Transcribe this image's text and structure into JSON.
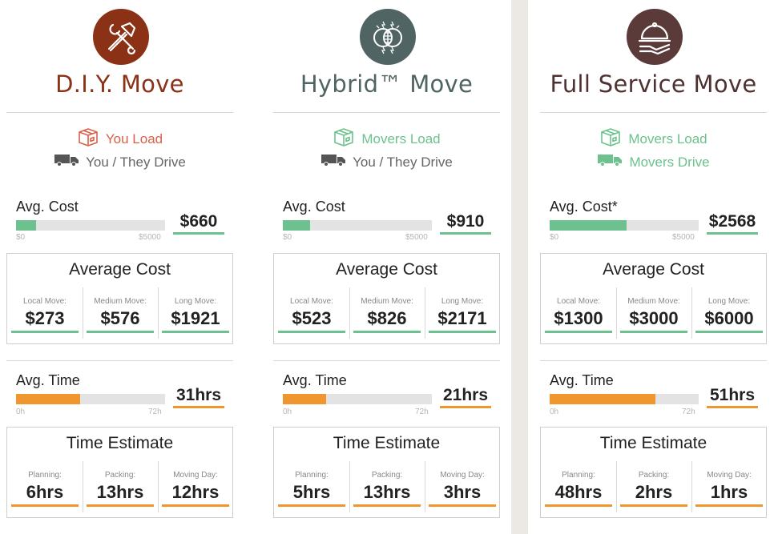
{
  "columns": [
    {
      "title": "D.I.Y. Move",
      "title_color": "#8b3116",
      "icon_bg": "#8b3116",
      "icon": "hammer-wrench-icon",
      "load": {
        "label": "You Load",
        "color": "#d9604a"
      },
      "drive": {
        "label": "You / They Drive",
        "color": "#666666"
      },
      "cost": {
        "label": "Avg. Cost",
        "min": "$0",
        "max": "$5000",
        "value": "$660",
        "fraction": 0.132
      },
      "cost_box": {
        "title": "Average Cost",
        "cells": [
          {
            "label": "Local Move:",
            "value": "$273"
          },
          {
            "label": "Medium Move:",
            "value": "$576"
          },
          {
            "label": "Long Move:",
            "value": "$1921"
          }
        ]
      },
      "time": {
        "label": "Avg. Time",
        "min": "0h",
        "max": "72h",
        "value": "31hrs",
        "fraction": 0.43
      },
      "time_box": {
        "title": "Time Estimate",
        "cells": [
          {
            "label": "Planning:",
            "value": "6hrs"
          },
          {
            "label": "Packing:",
            "value": "13hrs"
          },
          {
            "label": "Moving Day:",
            "value": "12hrs"
          }
        ]
      }
    },
    {
      "title": "Hybrid™ Move",
      "title_color": "#4f6463",
      "icon_bg": "#4f6463",
      "icon": "hybrid-icon",
      "load": {
        "label": "Movers Load",
        "color": "#6cc18e"
      },
      "drive": {
        "label": "You / They Drive",
        "color": "#666666"
      },
      "cost": {
        "label": "Avg. Cost",
        "min": "$0",
        "max": "$5000",
        "value": "$910",
        "fraction": 0.182
      },
      "cost_box": {
        "title": "Average Cost",
        "cells": [
          {
            "label": "Local Move:",
            "value": "$523"
          },
          {
            "label": "Medium Move:",
            "value": "$826"
          },
          {
            "label": "Long Move:",
            "value": "$2171"
          }
        ]
      },
      "time": {
        "label": "Avg. Time",
        "min": "0h",
        "max": "72h",
        "value": "21hrs",
        "fraction": 0.292
      },
      "time_box": {
        "title": "Time Estimate",
        "cells": [
          {
            "label": "Planning:",
            "value": "5hrs"
          },
          {
            "label": "Packing:",
            "value": "13hrs"
          },
          {
            "label": "Moving Day:",
            "value": "3hrs"
          }
        ]
      }
    },
    {
      "title": "Full Service Move",
      "title_color": "#4e3232",
      "icon_bg": "#5b3a3a",
      "icon": "cloche-hand-icon",
      "load": {
        "label": "Movers Load",
        "color": "#6cc18e"
      },
      "drive": {
        "label": "Movers Drive",
        "color": "#6cc18e"
      },
      "cost": {
        "label": "Avg. Cost*",
        "min": "$0",
        "max": "$5000",
        "value": "$2568",
        "fraction": 0.514
      },
      "cost_box": {
        "title": "Average Cost",
        "cells": [
          {
            "label": "Local Move:",
            "value": "$1300"
          },
          {
            "label": "Medium Move:",
            "value": "$3000"
          },
          {
            "label": "Long Move:",
            "value": "$6000"
          }
        ]
      },
      "time": {
        "label": "Avg. Time",
        "min": "0h",
        "max": "72h",
        "value": "51hrs",
        "fraction": 0.708
      },
      "time_box": {
        "title": "Time Estimate",
        "cells": [
          {
            "label": "Planning:",
            "value": "48hrs"
          },
          {
            "label": "Packing:",
            "value": "2hrs"
          },
          {
            "label": "Moving Day:",
            "value": "1hrs"
          }
        ]
      }
    }
  ],
  "colors": {
    "cost_accent": "#6cc18e",
    "time_accent": "#f0962e",
    "box_icon_gray": "#555555"
  }
}
